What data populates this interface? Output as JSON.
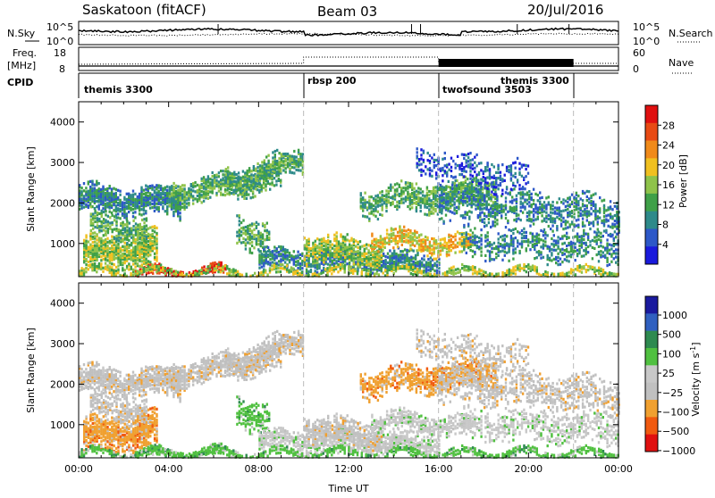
{
  "header": {
    "station": "Saskatoon (fitACF)",
    "beam": "Beam 03",
    "date": "20/Jul/2016"
  },
  "colors": {
    "power": [
      "#1a1adc",
      "#2d58c8",
      "#2e8a8a",
      "#3fa048",
      "#8fc34a",
      "#f0c020",
      "#f08a1a",
      "#e84a14",
      "#e01010"
    ],
    "velocity": [
      "#e01010",
      "#f05a10",
      "#f0a030",
      "#c0c0c0",
      "#c8c8c8",
      "#50c040",
      "#2e8a50",
      "#3060c0",
      "#1a1a9e"
    ],
    "ground": "#a8a8a8"
  },
  "chart_data": [
    {
      "type": "line",
      "panel": "noise",
      "left_label": "N.Sky",
      "right_label": "N.Search",
      "left_ticks": [
        "10^5",
        "10^0"
      ],
      "right_ticks": [
        "10^5",
        "10^0"
      ]
    },
    {
      "type": "line",
      "panel": "frequency",
      "left_label_top": "Freq.",
      "left_label_bottom": "[MHz]",
      "right_label": "Nave",
      "left_ticks": [
        "18",
        "8"
      ],
      "right_ticks": [
        "60",
        "0"
      ]
    },
    {
      "type": "table",
      "panel": "cpid",
      "label": "CPID",
      "entries": [
        {
          "name": "themis 3300",
          "start_hour": 0
        },
        {
          "name": "rbsp 200",
          "start_hour": 10
        },
        {
          "name": "twofsound 3503",
          "start_hour": 16
        },
        {
          "name": "themis 3300",
          "start_hour": 18.6
        }
      ],
      "boundaries_hours": [
        10,
        16,
        22
      ]
    },
    {
      "type": "heatmap",
      "panel": "power",
      "ylabel": "Slant Range [km]",
      "yticks": [
        "1000",
        "2000",
        "3000",
        "4000"
      ],
      "ylim": [
        180,
        4500
      ],
      "colorbar_label": "Power [dB]",
      "colorbar_ticks": [
        "4",
        "8",
        "12",
        "16",
        "20",
        "24",
        "28"
      ],
      "colorbar_range": [
        0,
        32
      ]
    },
    {
      "type": "heatmap",
      "panel": "velocity",
      "ylabel": "Slant Range [km]",
      "yticks": [
        "1000",
        "2000",
        "3000",
        "4000"
      ],
      "ylim": [
        180,
        4500
      ],
      "colorbar_label": "Velocity [m s",
      "colorbar_label_sup": "-1",
      "colorbar_label_end": "]",
      "colorbar_ticks": [
        "1000",
        "500",
        "100",
        "25",
        "−25",
        "−100",
        "−500",
        "−1000"
      ],
      "xlabel": "Time UT",
      "xticks": [
        "00:00",
        "04:00",
        "08:00",
        "12:00",
        "16:00",
        "20:00",
        "00:00"
      ],
      "xlim_hours": [
        0,
        24
      ]
    }
  ]
}
